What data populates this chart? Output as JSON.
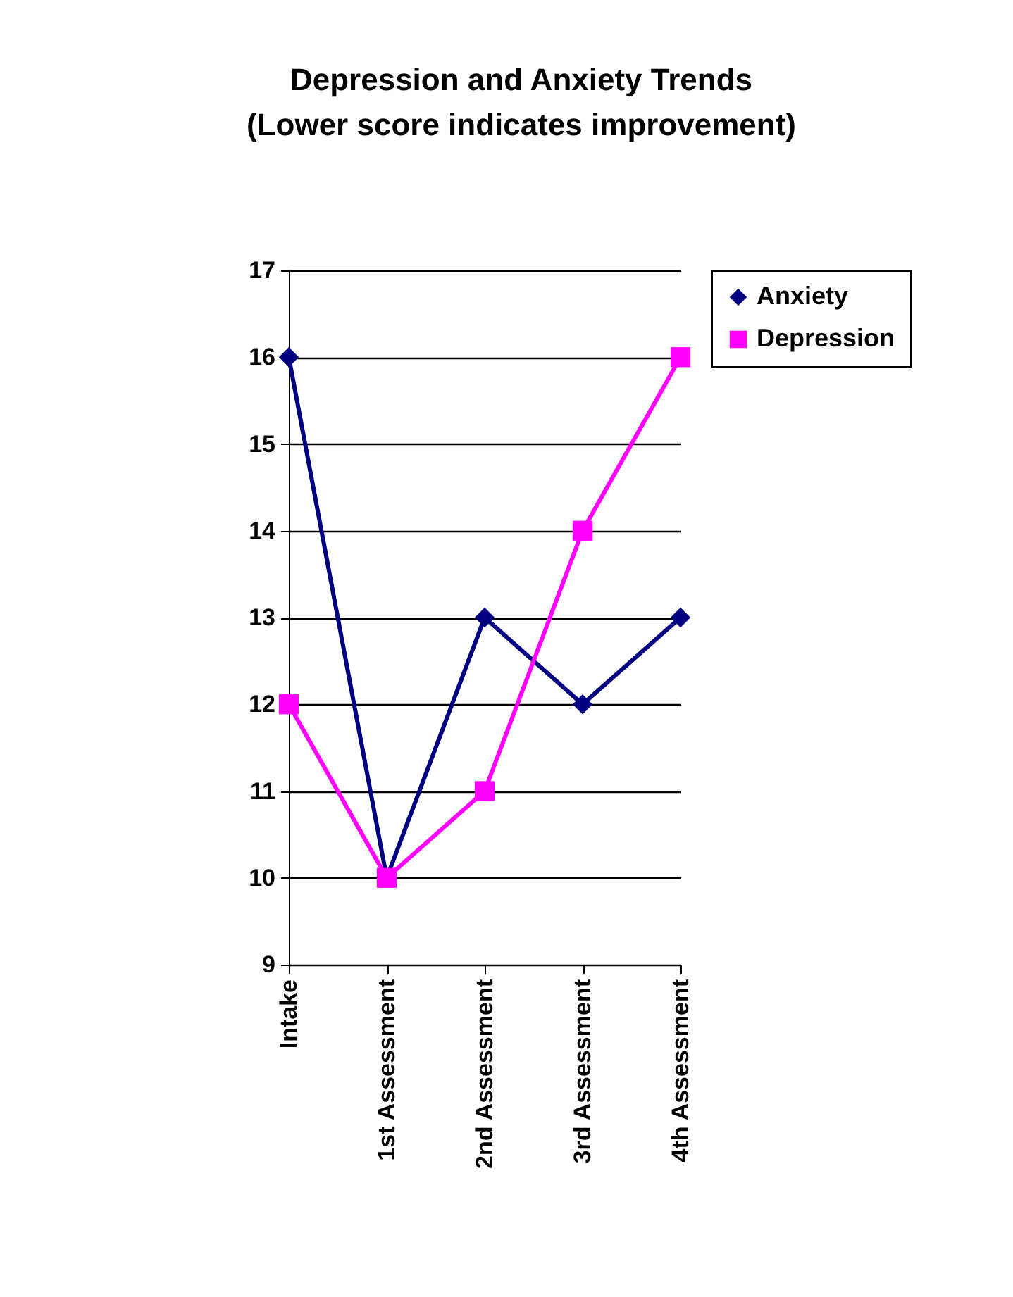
{
  "chart_data": {
    "type": "line",
    "title": "Depression and Anxiety Trends",
    "subtitle": "(Lower score indicates improvement)",
    "categories": [
      "Intake",
      "1st Assessment",
      "2nd Assessment",
      "3rd Assessment",
      "4th Assessment"
    ],
    "series": [
      {
        "name": "Anxiety",
        "color": "#000080",
        "marker": "diamond",
        "values": [
          16,
          10,
          13,
          12,
          13
        ]
      },
      {
        "name": "Depression",
        "color": "#ff00ff",
        "marker": "square",
        "values": [
          12,
          10,
          11,
          14,
          16
        ]
      }
    ],
    "ylim": [
      9,
      17
    ],
    "yticks": [
      9,
      10,
      11,
      12,
      13,
      14,
      15,
      16,
      17
    ],
    "grid": "y",
    "legend": "right"
  }
}
